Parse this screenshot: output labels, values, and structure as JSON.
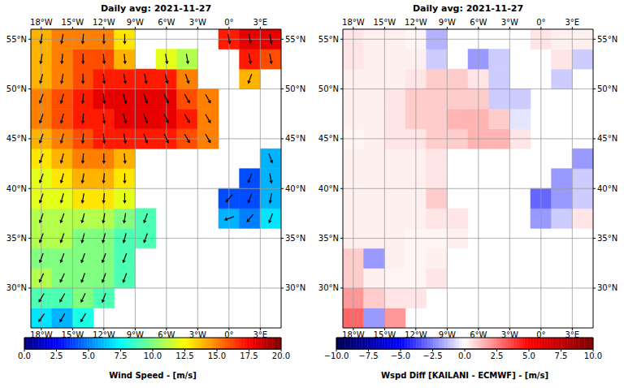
{
  "chart_data": [
    {
      "type": "heatmap",
      "title": "Daily avg: 2021-11-27",
      "xlim": [
        -19,
        5
      ],
      "ylim": [
        26,
        56
      ],
      "xticks": [
        {
          "value": -18,
          "label": "18°W"
        },
        {
          "value": -15,
          "label": "15°W"
        },
        {
          "value": -12,
          "label": "12°W"
        },
        {
          "value": -9,
          "label": "9°W"
        },
        {
          "value": -6,
          "label": "6°W"
        },
        {
          "value": -3,
          "label": "3°W"
        },
        {
          "value": 0,
          "label": "0°"
        },
        {
          "value": 3,
          "label": "3°E"
        }
      ],
      "yticks": [
        {
          "value": 30,
          "label": "30°N"
        },
        {
          "value": 35,
          "label": "35°N"
        },
        {
          "value": 40,
          "label": "40°N"
        },
        {
          "value": 45,
          "label": "45°N"
        },
        {
          "value": 50,
          "label": "50°N"
        },
        {
          "value": 55,
          "label": "55°N"
        }
      ],
      "grid": true,
      "x": [
        -18,
        -16,
        -14,
        -12,
        -10,
        -8,
        -6,
        -4,
        -2,
        0,
        2,
        4
      ],
      "y": [
        27,
        29,
        31,
        33,
        35,
        37,
        39,
        41,
        43,
        45,
        47,
        49,
        51,
        53,
        55
      ],
      "cells": [
        [
          7,
          6,
          8,
          null,
          null,
          null,
          null,
          null,
          null,
          null,
          null,
          null
        ],
        [
          9,
          9,
          10,
          9,
          null,
          null,
          null,
          null,
          null,
          null,
          null,
          null
        ],
        [
          11,
          10,
          10,
          10,
          9,
          null,
          null,
          null,
          null,
          null,
          null,
          null
        ],
        [
          10,
          10,
          10,
          10,
          9,
          null,
          null,
          null,
          null,
          null,
          null,
          null
        ],
        [
          11,
          11,
          10,
          10,
          9,
          9,
          null,
          null,
          null,
          null,
          null,
          null
        ],
        [
          11,
          11,
          11,
          11,
          10,
          9,
          null,
          null,
          null,
          6,
          5,
          7
        ],
        [
          12,
          12,
          13,
          13,
          12,
          null,
          null,
          null,
          null,
          4,
          4,
          6
        ],
        [
          12,
          13,
          14,
          14,
          13,
          null,
          null,
          null,
          null,
          null,
          4,
          6
        ],
        [
          13,
          14,
          15,
          15,
          14,
          null,
          null,
          null,
          null,
          null,
          null,
          6
        ],
        [
          14,
          15,
          16,
          17,
          17,
          17,
          17,
          16,
          15,
          null,
          null,
          null
        ],
        [
          15,
          16,
          17,
          17,
          18,
          18,
          18,
          17,
          15,
          null,
          null,
          null
        ],
        [
          15,
          16,
          17,
          18,
          18,
          18,
          18,
          16,
          15,
          null,
          null,
          null
        ],
        [
          14,
          15,
          16,
          17,
          17,
          17,
          17,
          15,
          null,
          null,
          14,
          null
        ],
        [
          14,
          15,
          16,
          16,
          14,
          null,
          12,
          11,
          null,
          null,
          17,
          16
        ],
        [
          14,
          15,
          15,
          15,
          13,
          null,
          null,
          null,
          null,
          17,
          18,
          18
        ]
      ],
      "arrows": {
        "directions": [
          [
            215,
            210,
            210,
            null,
            null,
            null,
            null,
            null,
            null,
            null,
            null,
            null
          ],
          [
            210,
            210,
            205,
            200,
            null,
            null,
            null,
            null,
            null,
            null,
            null,
            null
          ],
          [
            205,
            205,
            200,
            200,
            200,
            null,
            null,
            null,
            null,
            null,
            null,
            null
          ],
          [
            200,
            200,
            200,
            200,
            200,
            null,
            null,
            null,
            null,
            null,
            null,
            null
          ],
          [
            200,
            200,
            195,
            195,
            195,
            200,
            null,
            null,
            null,
            null,
            null,
            null
          ],
          [
            200,
            200,
            195,
            190,
            190,
            200,
            null,
            null,
            null,
            250,
            220,
            200
          ],
          [
            200,
            195,
            190,
            185,
            180,
            null,
            null,
            null,
            null,
            220,
            200,
            190
          ],
          [
            200,
            195,
            190,
            185,
            180,
            null,
            null,
            null,
            null,
            null,
            200,
            170
          ],
          [
            200,
            195,
            185,
            180,
            175,
            null,
            null,
            null,
            null,
            null,
            null,
            160
          ],
          [
            200,
            195,
            185,
            175,
            170,
            160,
            155,
            150,
            150,
            null,
            null,
            null
          ],
          [
            200,
            195,
            185,
            175,
            165,
            160,
            155,
            150,
            150,
            null,
            null,
            null
          ],
          [
            200,
            195,
            185,
            175,
            165,
            160,
            155,
            150,
            150,
            null,
            null,
            null
          ],
          [
            195,
            190,
            180,
            175,
            170,
            170,
            165,
            160,
            null,
            null,
            200,
            null
          ],
          [
            190,
            185,
            180,
            175,
            175,
            null,
            170,
            170,
            null,
            null,
            170,
            170
          ],
          [
            190,
            190,
            185,
            180,
            180,
            null,
            null,
            null,
            null,
            170,
            170,
            170
          ]
        ]
      },
      "colorbar": {
        "label": "Wind Speed - [m/s]",
        "range": [
          0,
          20
        ],
        "ticks": [
          {
            "value": 0,
            "label": "0.0"
          },
          {
            "value": 2.5,
            "label": "2.5"
          },
          {
            "value": 5,
            "label": "5.0"
          },
          {
            "value": 7.5,
            "label": "7.5"
          },
          {
            "value": 10,
            "label": "10.0"
          },
          {
            "value": 12.5,
            "label": "12.5"
          },
          {
            "value": 15,
            "label": "15.0"
          },
          {
            "value": 17.5,
            "label": "17.5"
          },
          {
            "value": 20,
            "label": "20.0"
          }
        ],
        "colors": [
          "#000080",
          "#0000ff",
          "#0080ff",
          "#00ffff",
          "#80ff80",
          "#ffff00",
          "#ff8000",
          "#ff0000",
          "#800000"
        ]
      }
    },
    {
      "type": "heatmap",
      "title": "Daily avg: 2021-11-27",
      "xlim": [
        -19,
        5
      ],
      "ylim": [
        26,
        56
      ],
      "xticks": [
        {
          "value": -18,
          "label": "18°W"
        },
        {
          "value": -15,
          "label": "15°W"
        },
        {
          "value": -12,
          "label": "12°W"
        },
        {
          "value": -9,
          "label": "9°W"
        },
        {
          "value": -6,
          "label": "6°W"
        },
        {
          "value": -3,
          "label": "3°W"
        },
        {
          "value": 0,
          "label": "0°"
        },
        {
          "value": 3,
          "label": "3°E"
        }
      ],
      "yticks": [
        {
          "value": 30,
          "label": "30°N"
        },
        {
          "value": 35,
          "label": "35°N"
        },
        {
          "value": 40,
          "label": "40°N"
        },
        {
          "value": 45,
          "label": "45°N"
        },
        {
          "value": 50,
          "label": "50°N"
        },
        {
          "value": 55,
          "label": "55°N"
        }
      ],
      "grid": true,
      "x": [
        -18,
        -16,
        -14,
        -12,
        -10,
        -8,
        -6,
        -4,
        -2,
        0,
        2,
        4
      ],
      "y": [
        27,
        29,
        31,
        33,
        35,
        37,
        39,
        41,
        43,
        45,
        47,
        49,
        51,
        53,
        55
      ],
      "cells": [
        [
          3,
          -2,
          2,
          null,
          null,
          null,
          null,
          null,
          null,
          null,
          null,
          null
        ],
        [
          2,
          1,
          0.5,
          0.5,
          null,
          null,
          null,
          null,
          null,
          null,
          null,
          null
        ],
        [
          1,
          0.3,
          0.2,
          0.2,
          0.5,
          null,
          null,
          null,
          null,
          null,
          null,
          null
        ],
        [
          1,
          -2,
          0.3,
          0.2,
          0.3,
          null,
          null,
          null,
          null,
          null,
          null,
          null
        ],
        [
          0.3,
          0.3,
          0.3,
          0.2,
          0.2,
          0.3,
          null,
          null,
          null,
          null,
          null,
          null
        ],
        [
          0.3,
          0.3,
          0.3,
          0.3,
          0.5,
          0.5,
          null,
          null,
          null,
          -2,
          -1,
          0.5
        ],
        [
          0.3,
          0.3,
          0.3,
          0.3,
          1,
          null,
          null,
          null,
          null,
          -3,
          -2,
          -1
        ],
        [
          0.3,
          0.3,
          0.3,
          0.3,
          0.5,
          null,
          null,
          null,
          null,
          null,
          -2,
          -1
        ],
        [
          0.3,
          0.3,
          0.3,
          0.3,
          0.5,
          null,
          null,
          null,
          null,
          null,
          null,
          -2
        ],
        [
          0.2,
          0.3,
          0.5,
          0.5,
          1,
          1,
          1.5,
          1.5,
          0.5,
          null,
          null,
          null
        ],
        [
          0.3,
          0.3,
          0.5,
          1,
          1,
          1.5,
          1.5,
          1,
          -0.5,
          null,
          null,
          null
        ],
        [
          0.3,
          0.3,
          0.5,
          1,
          1,
          1,
          1,
          -1,
          -1,
          null,
          null,
          null
        ],
        [
          0.3,
          0.3,
          0.3,
          0.5,
          1,
          1,
          0.5,
          -1,
          null,
          null,
          -1,
          null
        ],
        [
          0.5,
          0.3,
          0.3,
          0.3,
          -1,
          null,
          -2,
          -1,
          null,
          null,
          0.5,
          -1
        ],
        [
          0.5,
          0.3,
          0.3,
          0.2,
          -1.5,
          null,
          null,
          null,
          null,
          0.5,
          0.3,
          0.3
        ]
      ],
      "colorbar": {
        "label": "Wspd Diff [KAILANI - ECMWF] - [m/s]",
        "range": [
          -10,
          10
        ],
        "ticks": [
          {
            "value": -10,
            "label": "−10.0"
          },
          {
            "value": -7.5,
            "label": "−7.5"
          },
          {
            "value": -5,
            "label": "−5.0"
          },
          {
            "value": -2.5,
            "label": "−2.5"
          },
          {
            "value": 0,
            "label": "0.0"
          },
          {
            "value": 2.5,
            "label": "2.5"
          },
          {
            "value": 5,
            "label": "5.0"
          },
          {
            "value": 7.5,
            "label": "7.5"
          },
          {
            "value": 10,
            "label": "10.0"
          }
        ],
        "colors": [
          "#00004d",
          "#0000ff",
          "#ffffff",
          "#ff0000",
          "#800000"
        ]
      }
    }
  ]
}
